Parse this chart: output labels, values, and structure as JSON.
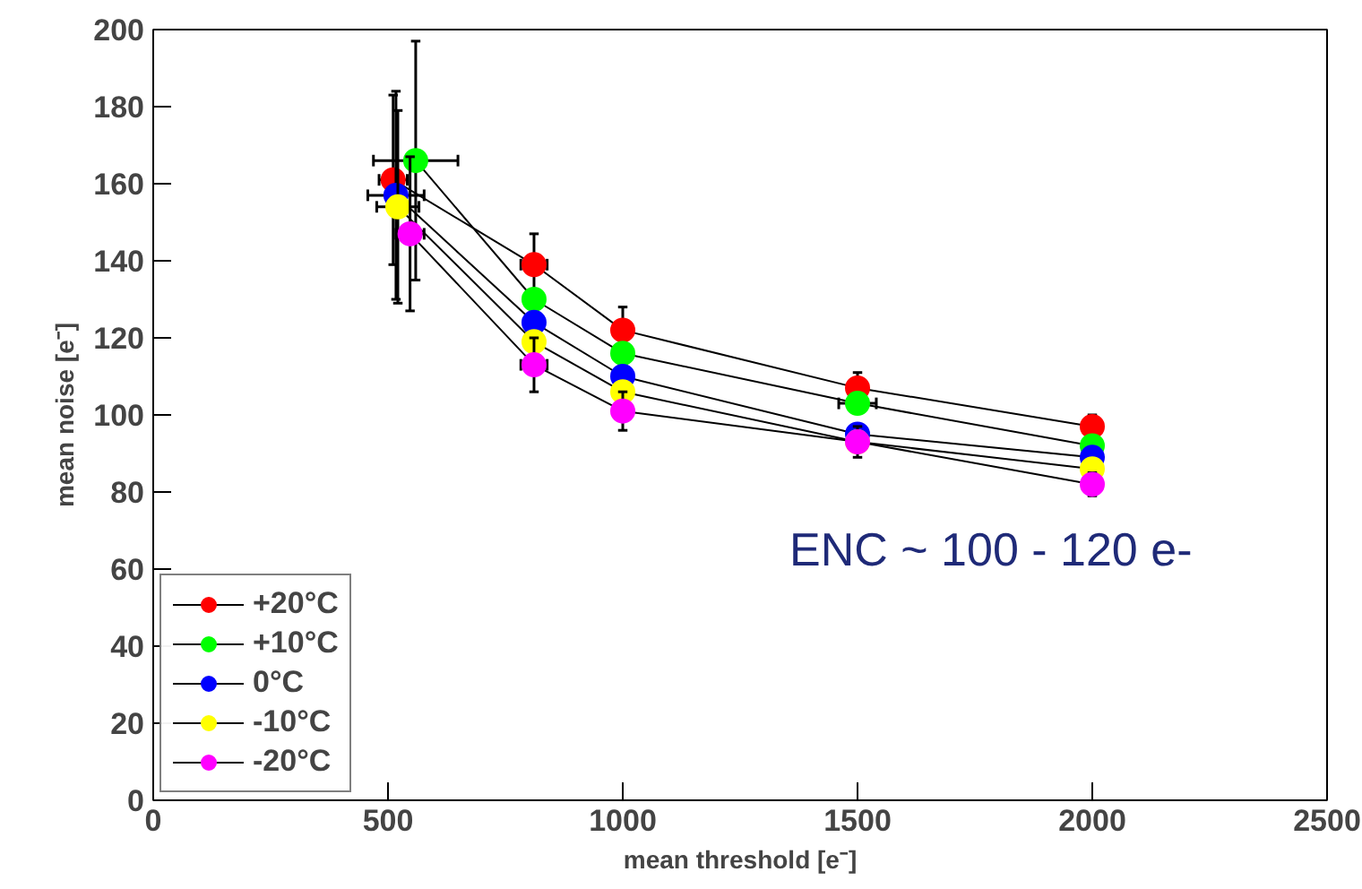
{
  "chart_data": {
    "type": "line",
    "xlabel": "mean threshold [e⁻]",
    "ylabel": "mean noise [e⁻]",
    "xlim": [
      0,
      2500
    ],
    "ylim": [
      0,
      200
    ],
    "xticks": [
      0,
      500,
      1000,
      1500,
      2000,
      2500
    ],
    "yticks": [
      0,
      20,
      40,
      60,
      80,
      100,
      120,
      140,
      160,
      180,
      200
    ],
    "grid": false,
    "legend": "bottom left",
    "marker": "circle",
    "line_style": "solid",
    "annotations": [
      "ENC ~ 100 - 120 e-"
    ],
    "series": [
      {
        "name": "+20°C",
        "color": "#ff0000",
        "x": [
          511,
          811,
          1000,
          1500,
          2000
        ],
        "values": [
          161,
          139,
          122,
          107,
          97
        ],
        "errors": [
          22,
          8,
          6,
          4,
          3
        ],
        "xerrors": [
          30,
          28,
          null,
          null,
          null
        ]
      },
      {
        "name": "+10°C",
        "color": "#00ff00",
        "x": [
          559,
          811,
          1000,
          1500,
          2000
        ],
        "values": [
          166,
          130,
          116,
          103,
          92
        ],
        "errors": [
          31,
          null,
          null,
          null,
          null
        ],
        "xerrors": [
          90,
          null,
          null,
          40,
          null
        ]
      },
      {
        "name": "0°C",
        "color": "#0000ff",
        "x": [
          517,
          811,
          1000,
          1500,
          2000
        ],
        "values": [
          157,
          124,
          110,
          95,
          89
        ],
        "errors": [
          27,
          null,
          null,
          null,
          null
        ],
        "xerrors": [
          60,
          null,
          null,
          null,
          null
        ]
      },
      {
        "name": "-10°C",
        "color": "#ffff00",
        "x": [
          521,
          811,
          1000,
          1500,
          2000
        ],
        "values": [
          154,
          119,
          106,
          93,
          86
        ],
        "errors": [
          25,
          null,
          null,
          null,
          null
        ],
        "xerrors": [
          45,
          null,
          null,
          null,
          null
        ]
      },
      {
        "name": "-20°C",
        "color": "#ff00ff",
        "x": [
          547,
          811,
          1000,
          1500,
          2000
        ],
        "values": [
          147,
          113,
          101,
          93,
          82
        ],
        "errors": [
          20,
          7,
          5,
          4,
          3
        ],
        "xerrors": [
          30,
          28,
          null,
          null,
          null
        ]
      }
    ]
  }
}
